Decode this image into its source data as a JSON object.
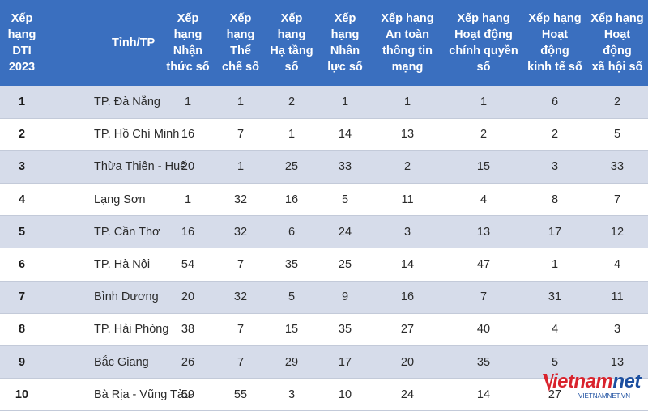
{
  "headers": [
    "Xếp\nhạng\nDTI\n2023",
    "Tỉnh/TP",
    "Xếp\nhạng\nNhận\nthức số",
    "Xếp\nhạng\nThể\nchế số",
    "Xếp\nhạng\nHạ tầng\nsố",
    "Xếp\nhạng\nNhân\nlực số",
    "Xếp hạng\nAn toàn\nthông tin\nmạng",
    "Xếp hạng\nHoạt động\nchính quyền\nsố",
    "Xếp hạng\nHoạt\nđộng\nkinh tế số",
    "Xếp hạng\nHoạt\nđộng\nxã hội số"
  ],
  "rows": [
    {
      "rank": "1",
      "province": "TP. Đà Nẵng",
      "values": [
        "1",
        "1",
        "2",
        "1",
        "1",
        "1",
        "6",
        "2"
      ]
    },
    {
      "rank": "2",
      "province": "TP. Hồ Chí Minh",
      "values": [
        "16",
        "7",
        "1",
        "14",
        "13",
        "2",
        "2",
        "5"
      ]
    },
    {
      "rank": "3",
      "province": "Thừa Thiên - Huế",
      "values": [
        "20",
        "1",
        "25",
        "33",
        "2",
        "15",
        "3",
        "33"
      ]
    },
    {
      "rank": "4",
      "province": "Lạng Sơn",
      "values": [
        "1",
        "32",
        "16",
        "5",
        "11",
        "4",
        "8",
        "7"
      ]
    },
    {
      "rank": "5",
      "province": "TP. Cần Thơ",
      "values": [
        "16",
        "32",
        "6",
        "24",
        "3",
        "13",
        "17",
        "12"
      ]
    },
    {
      "rank": "6",
      "province": "TP. Hà Nội",
      "values": [
        "54",
        "7",
        "35",
        "25",
        "14",
        "47",
        "1",
        "4"
      ]
    },
    {
      "rank": "7",
      "province": "Bình Dương",
      "values": [
        "20",
        "32",
        "5",
        "9",
        "16",
        "7",
        "31",
        "11"
      ]
    },
    {
      "rank": "8",
      "province": "TP. Hải Phòng",
      "values": [
        "38",
        "7",
        "15",
        "35",
        "27",
        "40",
        "4",
        "3"
      ]
    },
    {
      "rank": "9",
      "province": "Bắc Giang",
      "values": [
        "26",
        "7",
        "29",
        "17",
        "20",
        "35",
        "5",
        "13"
      ]
    },
    {
      "rank": "10",
      "province": "Bà Rịa - Vũng Tàu",
      "values": [
        "59",
        "55",
        "3",
        "10",
        "24",
        "14",
        "27",
        ""
      ]
    }
  ],
  "logo": {
    "main": "ietnam",
    "net": "net",
    "sub": "VIETNAMNET.VN"
  },
  "colors": {
    "header_bg": "#3a6fbf",
    "alt_row_bg": "#d6dcea",
    "logo_red": "#d9232d",
    "logo_blue": "#1c4fa0"
  }
}
